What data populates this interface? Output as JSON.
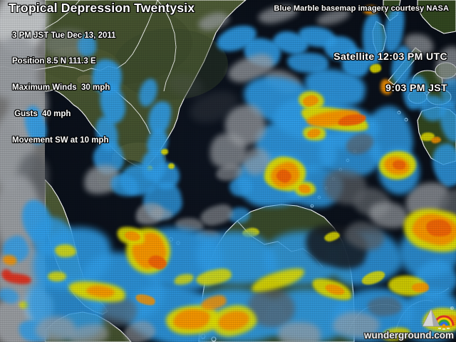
{
  "storm": {
    "title": "Tropical Depression Twentysix",
    "lines": [
      "3 PM JST Tue Dec 13, 2011",
      "Position 8.5 N 111.3 E",
      "Maximum Winds  30 mph",
      " Gusts  40 mph",
      "Movement SW at 10 mph"
    ]
  },
  "credit": "Blue Marble basemap imagery courtesy NASA",
  "satellite": {
    "line1": "Satellite 12:03 PM UTC",
    "line2": "9:03 PM JST"
  },
  "watermark": {
    "text": "wunderground.com",
    "registered_mark": "®"
  },
  "legend_colors": {
    "light_precip": "#2f9be4",
    "moderate_precip": "#ddd800",
    "heavy_precip": "#f39000",
    "intense_core": "#ea5f07",
    "extreme_precip": "#d92f1c",
    "cloud_gray": "#9b9fa4"
  }
}
